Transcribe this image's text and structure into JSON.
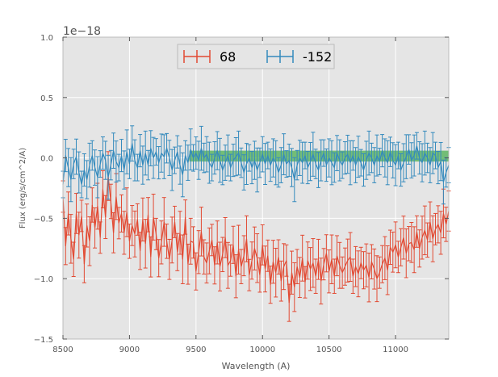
{
  "chart_data": {
    "type": "line",
    "xlabel": "Wavelength (A)",
    "ylabel": "Flux (erg/s/cm^2/A)",
    "offset_text": "1e−18",
    "xlim": [
      8500,
      11400
    ],
    "ylim": [
      -1.5,
      1.0
    ],
    "xticks": [
      8500,
      9000,
      9500,
      10000,
      10500,
      11000
    ],
    "xtick_labels": [
      "8500",
      "9000",
      "9500",
      "10000",
      "10500",
      "11000"
    ],
    "yticks": [
      -1.5,
      -1.0,
      -0.5,
      0.0,
      0.5,
      1.0
    ],
    "ytick_labels": [
      "−1.5",
      "−1.0",
      "−0.5",
      "0.0",
      "0.5",
      "1.0"
    ],
    "grid": true,
    "legend": {
      "position": "top-center",
      "entries": [
        "68",
        "-152"
      ]
    },
    "band": {
      "x0": 9450,
      "x1": 11400,
      "y0": -0.03,
      "y1": 0.06,
      "color": "#4caf50"
    },
    "series": [
      {
        "name": "68",
        "color": "#e24a33",
        "x_start": 8500,
        "x_step": 20,
        "values": [
          -0.32,
          -0.73,
          -0.46,
          -0.67,
          -0.84,
          -0.46,
          -0.64,
          -0.48,
          -0.88,
          -0.56,
          -0.69,
          -0.39,
          -0.58,
          -0.4,
          -0.66,
          -0.26,
          -0.49,
          -0.15,
          -0.36,
          -0.62,
          -0.32,
          -0.54,
          -0.46,
          -0.62,
          -0.45,
          -0.69,
          -0.56,
          -0.63,
          -0.51,
          -0.77,
          -0.51,
          -0.71,
          -0.47,
          -0.82,
          -0.49,
          -0.63,
          -0.83,
          -0.7,
          -0.53,
          -0.69,
          -0.84,
          -0.68,
          -0.53,
          -0.78,
          -0.62,
          -0.84,
          -0.49,
          -0.88,
          -0.69,
          -0.7,
          -0.94,
          -0.78,
          -0.61,
          -0.82,
          -0.87,
          -0.77,
          -0.68,
          -0.89,
          -0.7,
          -0.9,
          -0.8,
          -0.66,
          -0.89,
          -0.85,
          -0.72,
          -0.98,
          -0.76,
          -0.9,
          -0.81,
          -0.67,
          -0.97,
          -0.85,
          -0.75,
          -0.83,
          -0.97,
          -0.72,
          -0.92,
          -0.81,
          -1.05,
          -0.86,
          -0.95,
          -0.82,
          -1.02,
          -0.9,
          -0.85,
          -1.2,
          -0.95,
          -1.07,
          -0.9,
          -0.99,
          -0.83,
          -1.03,
          -0.85,
          -0.92,
          -0.87,
          -0.98,
          -0.84,
          -1.02,
          -0.88,
          -0.79,
          -0.94,
          -0.84,
          -0.98,
          -0.81,
          -0.89,
          -0.95,
          -0.9,
          -0.85,
          -0.82,
          -0.98,
          -0.9,
          -0.96,
          -0.87,
          -0.93,
          -0.89,
          -0.99,
          -0.86,
          -0.92,
          -1.0,
          -0.95,
          -0.88,
          -0.83,
          -0.93,
          -0.74,
          -0.78,
          -0.72,
          -0.82,
          -0.74,
          -0.66,
          -0.79,
          -0.71,
          -0.7,
          -0.76,
          -0.61,
          -0.75,
          -0.66,
          -0.6,
          -0.68,
          -0.53,
          -0.67,
          -0.59,
          -0.55,
          -0.62,
          -0.46,
          -0.55,
          -0.44,
          -0.48,
          -0.35,
          -0.45,
          -0.28,
          -0.32
        ]
      },
      {
        "name": "-152",
        "color": "#348abd",
        "x_start": 8500,
        "x_step": 20,
        "values": [
          -0.22,
          0.02,
          -0.08,
          -0.18,
          -0.05,
          0.01,
          -0.12,
          -0.22,
          -0.1,
          -0.18,
          -0.06,
          0.02,
          -0.08,
          -0.16,
          -0.05,
          0.04,
          -0.02,
          -0.16,
          -0.06,
          0.06,
          -0.03,
          -0.08,
          0.02,
          -0.1,
          0.05,
          -0.05,
          0.12,
          -0.02,
          -0.08,
          0.06,
          -0.06,
          0.04,
          -0.06,
          0.08,
          0.0,
          0.05,
          -0.04,
          0.04,
          0.01,
          0.08,
          0.0,
          -0.1,
          -0.02,
          0.05,
          -0.06,
          -0.14,
          0.02,
          -0.04,
          0.07,
          0.0,
          0.04,
          -0.02,
          0.08,
          0.0,
          0.03,
          -0.04,
          -0.08,
          0.0,
          0.06,
          -0.02,
          -0.1,
          -0.04,
          0.02,
          -0.08,
          -0.02,
          0.01,
          0.04,
          -0.04,
          -0.12,
          -0.05,
          0.0,
          -0.08,
          -0.02,
          -0.1,
          -0.04,
          0.03,
          -0.05,
          0.02,
          -0.06,
          0.0,
          -0.04,
          -0.12,
          -0.06,
          0.03,
          -0.05,
          -0.02,
          -0.08,
          -0.18,
          -0.06,
          0.0,
          -0.04,
          0.02,
          -0.08,
          -0.03,
          0.03,
          -0.05,
          -0.1,
          -0.02,
          0.04,
          -0.06,
          0.0,
          -0.04,
          -0.08,
          0.04,
          -0.02,
          -0.06,
          0.0,
          0.03,
          -0.04,
          0.02,
          -0.06,
          0.01,
          -0.04,
          -0.1,
          -0.02,
          0.04,
          0.0,
          -0.06,
          0.02,
          -0.03,
          0.06,
          0.0,
          -0.04,
          0.05,
          -0.02,
          -0.06,
          0.02,
          -0.1,
          -0.04,
          0.01,
          0.07,
          -0.02,
          0.02,
          0.1,
          0.0,
          -0.04,
          0.04,
          0.0,
          -0.06,
          0.04,
          0.02,
          -0.08,
          -0.03,
          -0.2,
          -0.12,
          -0.06,
          -0.14,
          -0.1,
          -0.02
        ]
      }
    ]
  }
}
